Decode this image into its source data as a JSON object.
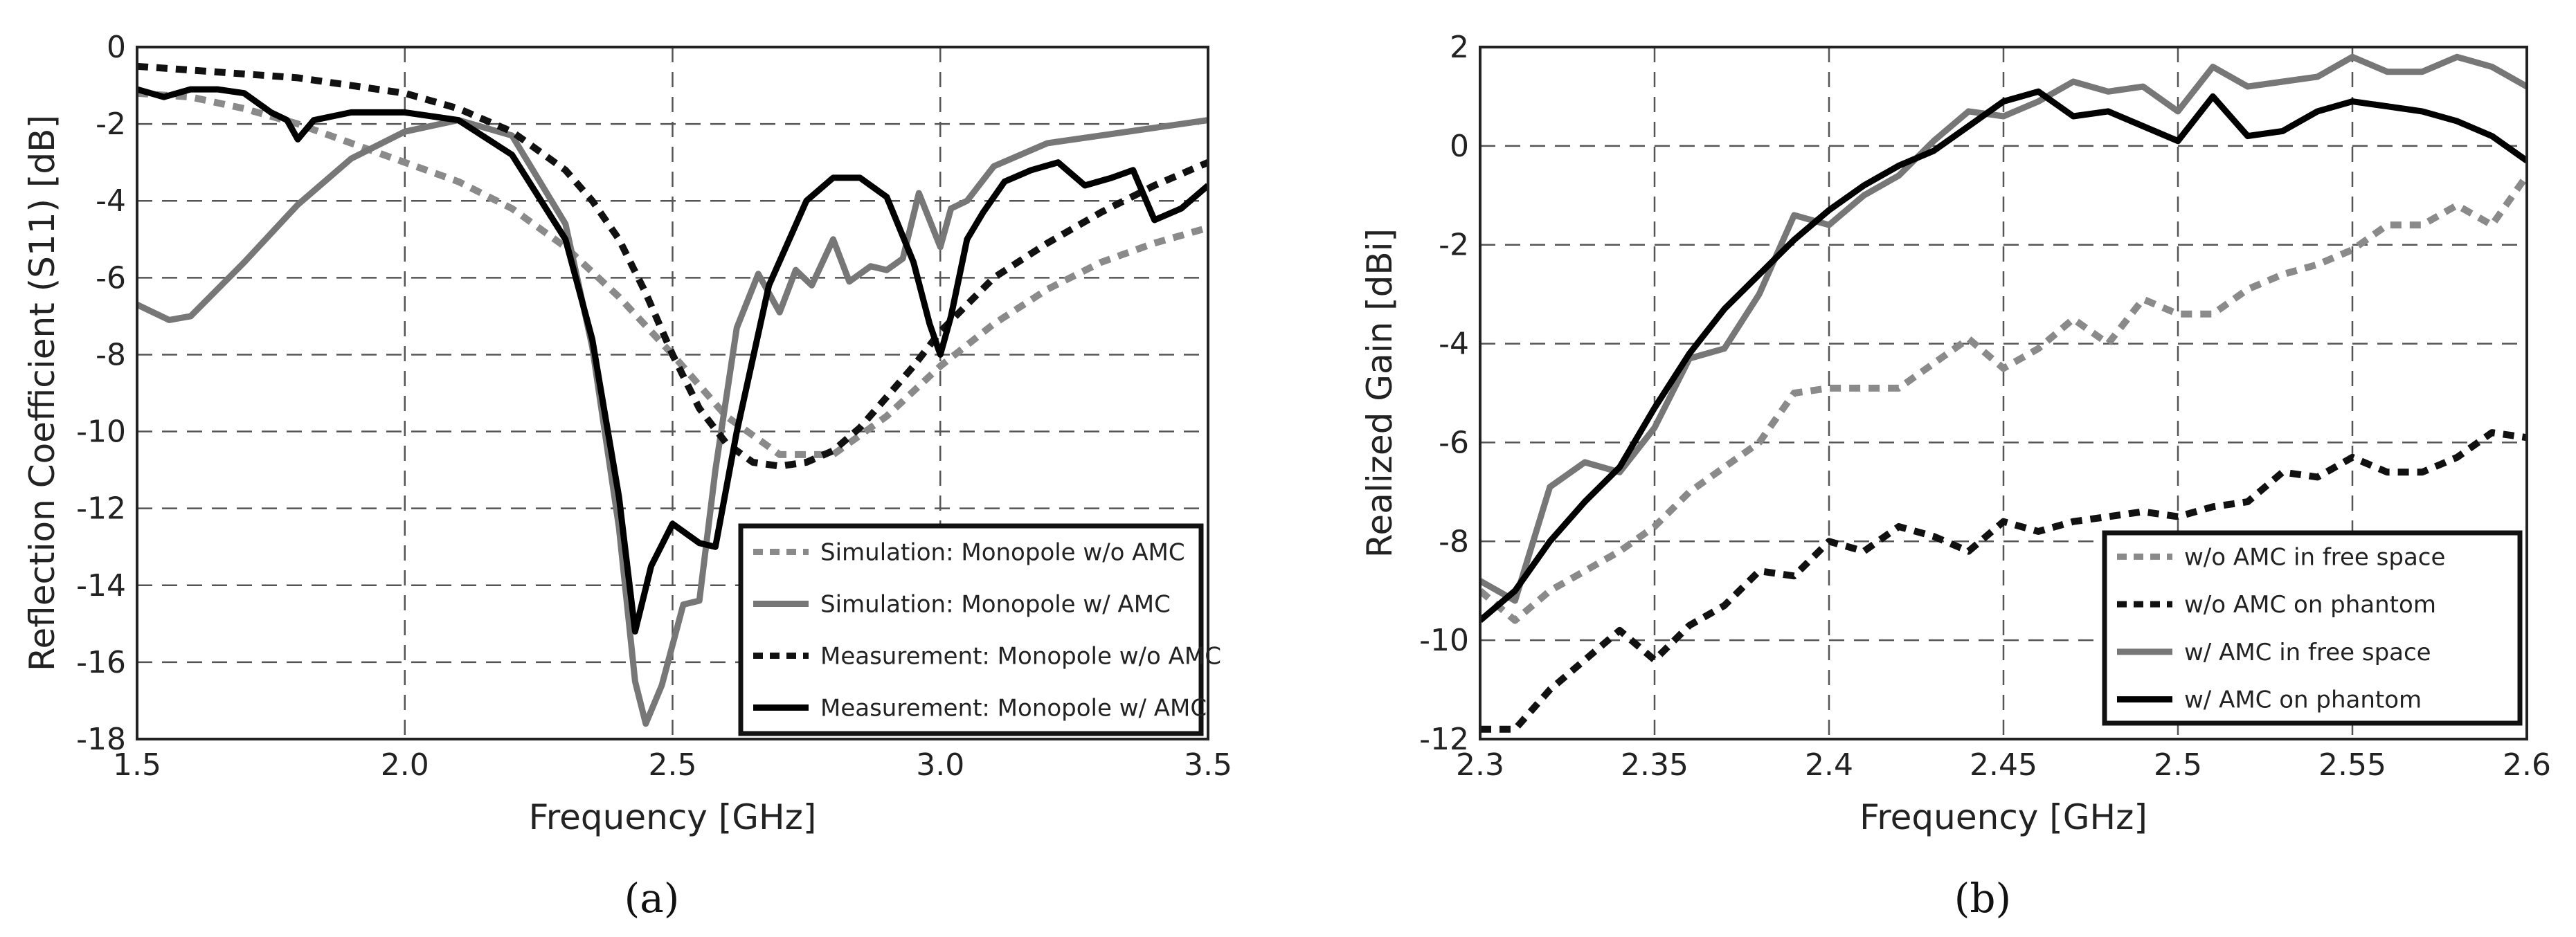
{
  "chart_data": [
    {
      "type": "line",
      "panel_label": "(a)",
      "xlabel": "Frequency [GHz]",
      "ylabel": "Reflection Coefficient (S11) [dB]",
      "xlim": [
        1.5,
        3.5
      ],
      "ylim": [
        -18,
        0
      ],
      "xticks": [
        1.5,
        2.0,
        2.5,
        3.0,
        3.5
      ],
      "xtick_labels": [
        "1.5",
        "2.0",
        "2.5",
        "3.0",
        "3.5"
      ],
      "yticks": [
        0,
        -2,
        -4,
        -6,
        -8,
        -10,
        -12,
        -14,
        -16,
        -18
      ],
      "ytick_labels": [
        "0",
        "-2",
        "-4",
        "-6",
        "-8",
        "-10",
        "-12",
        "-14",
        "-16",
        "-18"
      ],
      "grid": true,
      "legend_position": "bottom-right",
      "series": [
        {
          "name": "Simulation: Monopole w/o AMC",
          "color": "#8a8a8a",
          "dash": true,
          "x": [
            1.5,
            1.6,
            1.7,
            1.8,
            1.9,
            2.0,
            2.1,
            2.2,
            2.3,
            2.4,
            2.5,
            2.6,
            2.7,
            2.8,
            2.9,
            3.0,
            3.1,
            3.2,
            3.3,
            3.4,
            3.5
          ],
          "y": [
            -1.2,
            -1.3,
            -1.6,
            -2.0,
            -2.5,
            -3.0,
            -3.5,
            -4.2,
            -5.2,
            -6.5,
            -8.0,
            -9.6,
            -10.6,
            -10.6,
            -9.6,
            -8.3,
            -7.2,
            -6.3,
            -5.6,
            -5.1,
            -4.7
          ]
        },
        {
          "name": "Simulation: Monopole w/ AMC",
          "color": "#777777",
          "dash": false,
          "x": [
            1.5,
            1.56,
            1.6,
            1.7,
            1.8,
            1.9,
            2.0,
            2.1,
            2.2,
            2.3,
            2.35,
            2.4,
            2.43,
            2.45,
            2.48,
            2.52,
            2.55,
            2.58,
            2.62,
            2.66,
            2.7,
            2.73,
            2.76,
            2.8,
            2.83,
            2.87,
            2.9,
            2.93,
            2.96,
            3.0,
            3.02,
            3.05,
            3.1,
            3.2,
            3.3,
            3.4,
            3.5
          ],
          "y": [
            -6.7,
            -7.1,
            -7.0,
            -5.6,
            -4.1,
            -2.9,
            -2.2,
            -1.9,
            -2.3,
            -4.6,
            -7.8,
            -12.5,
            -16.5,
            -17.6,
            -16.6,
            -14.5,
            -14.4,
            -11.0,
            -7.3,
            -5.9,
            -6.9,
            -5.8,
            -6.2,
            -5.0,
            -6.1,
            -5.7,
            -5.8,
            -5.5,
            -3.8,
            -5.2,
            -4.2,
            -4.0,
            -3.1,
            -2.5,
            -2.3,
            -2.1,
            -1.9
          ]
        },
        {
          "name": "Measurement: Monopole w/o AMC",
          "color": "#111111",
          "dash": true,
          "x": [
            1.5,
            1.6,
            1.7,
            1.8,
            1.9,
            2.0,
            2.1,
            2.2,
            2.3,
            2.35,
            2.4,
            2.45,
            2.5,
            2.55,
            2.6,
            2.65,
            2.7,
            2.75,
            2.8,
            2.85,
            2.9,
            2.95,
            3.0,
            3.05,
            3.1,
            3.2,
            3.3,
            3.4,
            3.5
          ],
          "y": [
            -0.5,
            -0.6,
            -0.7,
            -0.8,
            -1.0,
            -1.2,
            -1.6,
            -2.2,
            -3.2,
            -4.0,
            -5.0,
            -6.4,
            -8.0,
            -9.4,
            -10.3,
            -10.8,
            -10.9,
            -10.8,
            -10.5,
            -9.9,
            -9.1,
            -8.3,
            -7.4,
            -6.7,
            -6.0,
            -5.1,
            -4.3,
            -3.6,
            -3.0
          ]
        },
        {
          "name": "Measurement: Monopole w/ AMC",
          "color": "#000000",
          "dash": false,
          "x": [
            1.5,
            1.55,
            1.6,
            1.65,
            1.7,
            1.75,
            1.78,
            1.8,
            1.83,
            1.9,
            2.0,
            2.1,
            2.2,
            2.3,
            2.35,
            2.4,
            2.43,
            2.46,
            2.5,
            2.55,
            2.58,
            2.62,
            2.68,
            2.75,
            2.8,
            2.85,
            2.9,
            2.95,
            2.98,
            3.0,
            3.02,
            3.05,
            3.08,
            3.12,
            3.17,
            3.22,
            3.27,
            3.32,
            3.36,
            3.4,
            3.45,
            3.5
          ],
          "y": [
            -1.1,
            -1.3,
            -1.1,
            -1.1,
            -1.2,
            -1.7,
            -1.9,
            -2.4,
            -1.9,
            -1.7,
            -1.7,
            -1.9,
            -2.8,
            -5.0,
            -7.6,
            -11.7,
            -15.2,
            -13.5,
            -12.4,
            -12.9,
            -13.0,
            -10.0,
            -6.2,
            -4.0,
            -3.4,
            -3.4,
            -3.9,
            -5.6,
            -7.2,
            -8.0,
            -7.0,
            -5.0,
            -4.3,
            -3.5,
            -3.2,
            -3.0,
            -3.6,
            -3.4,
            -3.2,
            -4.5,
            -4.2,
            -3.6
          ]
        }
      ]
    },
    {
      "type": "line",
      "panel_label": "(b)",
      "xlabel": "Frequency [GHz]",
      "ylabel": "Realized Gain [dBi]",
      "xlim": [
        2.3,
        2.6
      ],
      "ylim": [
        -12,
        2
      ],
      "xticks": [
        2.3,
        2.35,
        2.4,
        2.45,
        2.5,
        2.55,
        2.6
      ],
      "xtick_labels": [
        "2.3",
        "2.35",
        "2.4",
        "2.45",
        "2.5",
        "2.55",
        "2.6"
      ],
      "yticks": [
        2,
        0,
        -2,
        -4,
        -6,
        -8,
        -10,
        -12
      ],
      "ytick_labels": [
        "2",
        "0",
        "-2",
        "-4",
        "-6",
        "-8",
        "-10",
        "-12"
      ],
      "grid": true,
      "legend_position": "bottom-right",
      "series": [
        {
          "name": "w/o AMC in free space",
          "color": "#8a8a8a",
          "dash": true,
          "x": [
            2.3,
            2.31,
            2.32,
            2.33,
            2.34,
            2.35,
            2.36,
            2.37,
            2.38,
            2.39,
            2.4,
            2.41,
            2.42,
            2.43,
            2.44,
            2.45,
            2.46,
            2.47,
            2.48,
            2.49,
            2.5,
            2.51,
            2.52,
            2.53,
            2.54,
            2.55,
            2.56,
            2.57,
            2.58,
            2.59,
            2.6
          ],
          "y": [
            -9.0,
            -9.6,
            -9.0,
            -8.6,
            -8.2,
            -7.7,
            -7.0,
            -6.5,
            -6.0,
            -5.0,
            -4.9,
            -4.9,
            -4.9,
            -4.4,
            -3.9,
            -4.5,
            -4.1,
            -3.5,
            -4.0,
            -3.1,
            -3.4,
            -3.4,
            -2.9,
            -2.6,
            -2.4,
            -2.1,
            -1.6,
            -1.6,
            -1.2,
            -1.6,
            -0.6
          ]
        },
        {
          "name": "w/o AMC on phantom",
          "color": "#111111",
          "dash": true,
          "x": [
            2.3,
            2.31,
            2.32,
            2.33,
            2.34,
            2.35,
            2.36,
            2.37,
            2.38,
            2.39,
            2.4,
            2.41,
            2.42,
            2.43,
            2.44,
            2.45,
            2.46,
            2.47,
            2.48,
            2.49,
            2.5,
            2.51,
            2.52,
            2.53,
            2.54,
            2.55,
            2.56,
            2.57,
            2.58,
            2.59,
            2.6
          ],
          "y": [
            -11.8,
            -11.8,
            -11.0,
            -10.4,
            -9.8,
            -10.4,
            -9.7,
            -9.3,
            -8.6,
            -8.7,
            -8.0,
            -8.2,
            -7.7,
            -7.9,
            -8.2,
            -7.6,
            -7.8,
            -7.6,
            -7.5,
            -7.4,
            -7.5,
            -7.3,
            -7.2,
            -6.6,
            -6.7,
            -6.3,
            -6.6,
            -6.6,
            -6.3,
            -5.8,
            -5.9
          ]
        },
        {
          "name": "w/ AMC in free space",
          "color": "#777777",
          "dash": false,
          "x": [
            2.3,
            2.31,
            2.32,
            2.33,
            2.34,
            2.35,
            2.36,
            2.37,
            2.38,
            2.39,
            2.4,
            2.41,
            2.42,
            2.43,
            2.44,
            2.45,
            2.46,
            2.47,
            2.48,
            2.49,
            2.5,
            2.51,
            2.52,
            2.53,
            2.54,
            2.55,
            2.56,
            2.57,
            2.58,
            2.59,
            2.6
          ],
          "y": [
            -8.8,
            -9.2,
            -6.9,
            -6.4,
            -6.6,
            -5.7,
            -4.3,
            -4.1,
            -3.0,
            -1.4,
            -1.6,
            -1.0,
            -0.6,
            0.1,
            0.7,
            0.6,
            0.9,
            1.3,
            1.1,
            1.2,
            0.7,
            1.6,
            1.2,
            1.3,
            1.4,
            1.8,
            1.5,
            1.5,
            1.8,
            1.6,
            1.2
          ]
        },
        {
          "name": "w/ AMC on phantom",
          "color": "#000000",
          "dash": false,
          "x": [
            2.3,
            2.31,
            2.32,
            2.33,
            2.34,
            2.35,
            2.36,
            2.37,
            2.38,
            2.39,
            2.4,
            2.41,
            2.42,
            2.43,
            2.44,
            2.45,
            2.46,
            2.47,
            2.48,
            2.49,
            2.5,
            2.51,
            2.52,
            2.53,
            2.54,
            2.55,
            2.56,
            2.57,
            2.58,
            2.59,
            2.6
          ],
          "y": [
            -9.6,
            -9.0,
            -8.0,
            -7.2,
            -6.5,
            -5.3,
            -4.2,
            -3.3,
            -2.6,
            -1.9,
            -1.3,
            -0.8,
            -0.4,
            -0.1,
            0.4,
            0.9,
            1.1,
            0.6,
            0.7,
            0.4,
            0.1,
            1.0,
            0.2,
            0.3,
            0.7,
            0.9,
            0.8,
            0.7,
            0.5,
            0.2,
            -0.3
          ]
        }
      ]
    }
  ]
}
